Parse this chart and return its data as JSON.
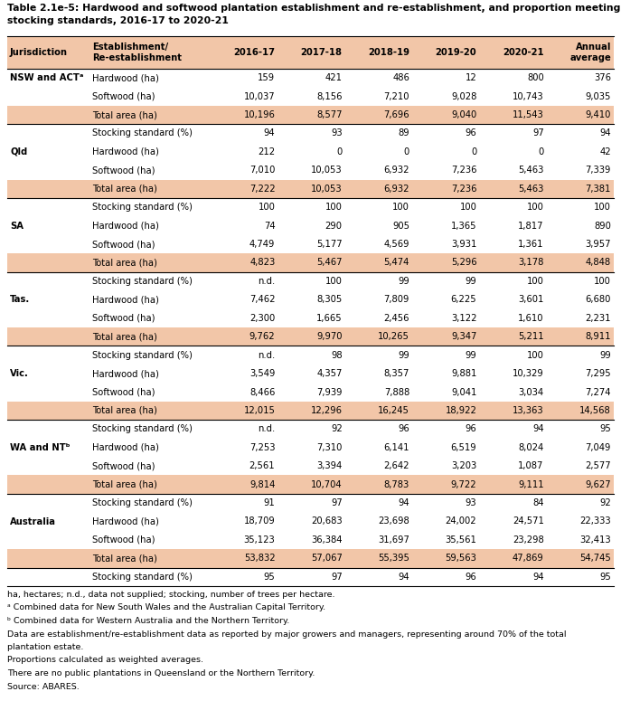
{
  "title_line1": "Table 2.1e-5: Hardwood and softwood plantation establishment and re-establishment, and proportion meeting",
  "title_line2": "stocking standards, 2016-17 to 2020-21",
  "col_headers": [
    "Jurisdiction",
    "Establishment/\nRe-establishment",
    "2016-17",
    "2017-18",
    "2018-19",
    "2019-20",
    "2020-21",
    "Annual\naverage"
  ],
  "rows": [
    {
      "jurisdiction": "NSW and ACTᵃ",
      "sub": "Hardwood (ha)",
      "values": [
        "159",
        "421",
        "486",
        "12",
        "800",
        "376"
      ],
      "highlight": false
    },
    {
      "jurisdiction": "",
      "sub": "Softwood (ha)",
      "values": [
        "10,037",
        "8,156",
        "7,210",
        "9,028",
        "10,743",
        "9,035"
      ],
      "highlight": false
    },
    {
      "jurisdiction": "",
      "sub": "Total area (ha)",
      "values": [
        "10,196",
        "8,577",
        "7,696",
        "9,040",
        "11,543",
        "9,410"
      ],
      "highlight": true
    },
    {
      "jurisdiction": "",
      "sub": "Stocking standard (%)",
      "values": [
        "94",
        "93",
        "89",
        "96",
        "97",
        "94"
      ],
      "highlight": false
    },
    {
      "jurisdiction": "Qld",
      "sub": "Hardwood (ha)",
      "values": [
        "212",
        "0",
        "0",
        "0",
        "0",
        "42"
      ],
      "highlight": false
    },
    {
      "jurisdiction": "",
      "sub": "Softwood (ha)",
      "values": [
        "7,010",
        "10,053",
        "6,932",
        "7,236",
        "5,463",
        "7,339"
      ],
      "highlight": false
    },
    {
      "jurisdiction": "",
      "sub": "Total area (ha)",
      "values": [
        "7,222",
        "10,053",
        "6,932",
        "7,236",
        "5,463",
        "7,381"
      ],
      "highlight": true
    },
    {
      "jurisdiction": "",
      "sub": "Stocking standard (%)",
      "values": [
        "100",
        "100",
        "100",
        "100",
        "100",
        "100"
      ],
      "highlight": false
    },
    {
      "jurisdiction": "SA",
      "sub": "Hardwood (ha)",
      "values": [
        "74",
        "290",
        "905",
        "1,365",
        "1,817",
        "890"
      ],
      "highlight": false
    },
    {
      "jurisdiction": "",
      "sub": "Softwood (ha)",
      "values": [
        "4,749",
        "5,177",
        "4,569",
        "3,931",
        "1,361",
        "3,957"
      ],
      "highlight": false
    },
    {
      "jurisdiction": "",
      "sub": "Total area (ha)",
      "values": [
        "4,823",
        "5,467",
        "5,474",
        "5,296",
        "3,178",
        "4,848"
      ],
      "highlight": true
    },
    {
      "jurisdiction": "",
      "sub": "Stocking standard (%)",
      "values": [
        "n.d.",
        "100",
        "99",
        "99",
        "100",
        "100"
      ],
      "highlight": false
    },
    {
      "jurisdiction": "Tas.",
      "sub": "Hardwood (ha)",
      "values": [
        "7,462",
        "8,305",
        "7,809",
        "6,225",
        "3,601",
        "6,680"
      ],
      "highlight": false
    },
    {
      "jurisdiction": "",
      "sub": "Softwood (ha)",
      "values": [
        "2,300",
        "1,665",
        "2,456",
        "3,122",
        "1,610",
        "2,231"
      ],
      "highlight": false
    },
    {
      "jurisdiction": "",
      "sub": "Total area (ha)",
      "values": [
        "9,762",
        "9,970",
        "10,265",
        "9,347",
        "5,211",
        "8,911"
      ],
      "highlight": true
    },
    {
      "jurisdiction": "",
      "sub": "Stocking standard (%)",
      "values": [
        "n.d.",
        "98",
        "99",
        "99",
        "100",
        "99"
      ],
      "highlight": false
    },
    {
      "jurisdiction": "Vic.",
      "sub": "Hardwood (ha)",
      "values": [
        "3,549",
        "4,357",
        "8,357",
        "9,881",
        "10,329",
        "7,295"
      ],
      "highlight": false
    },
    {
      "jurisdiction": "",
      "sub": "Softwood (ha)",
      "values": [
        "8,466",
        "7,939",
        "7,888",
        "9,041",
        "3,034",
        "7,274"
      ],
      "highlight": false
    },
    {
      "jurisdiction": "",
      "sub": "Total area (ha)",
      "values": [
        "12,015",
        "12,296",
        "16,245",
        "18,922",
        "13,363",
        "14,568"
      ],
      "highlight": true
    },
    {
      "jurisdiction": "",
      "sub": "Stocking standard (%)",
      "values": [
        "n.d.",
        "92",
        "96",
        "96",
        "94",
        "95"
      ],
      "highlight": false
    },
    {
      "jurisdiction": "WA and NTᵇ",
      "sub": "Hardwood (ha)",
      "values": [
        "7,253",
        "7,310",
        "6,141",
        "6,519",
        "8,024",
        "7,049"
      ],
      "highlight": false
    },
    {
      "jurisdiction": "",
      "sub": "Softwood (ha)",
      "values": [
        "2,561",
        "3,394",
        "2,642",
        "3,203",
        "1,087",
        "2,577"
      ],
      "highlight": false
    },
    {
      "jurisdiction": "",
      "sub": "Total area (ha)",
      "values": [
        "9,814",
        "10,704",
        "8,783",
        "9,722",
        "9,111",
        "9,627"
      ],
      "highlight": true
    },
    {
      "jurisdiction": "",
      "sub": "Stocking standard (%)",
      "values": [
        "91",
        "97",
        "94",
        "93",
        "84",
        "92"
      ],
      "highlight": false
    },
    {
      "jurisdiction": "Australia",
      "sub": "Hardwood (ha)",
      "values": [
        "18,709",
        "20,683",
        "23,698",
        "24,002",
        "24,571",
        "22,333"
      ],
      "highlight": false
    },
    {
      "jurisdiction": "",
      "sub": "Softwood (ha)",
      "values": [
        "35,123",
        "36,384",
        "31,697",
        "35,561",
        "23,298",
        "32,413"
      ],
      "highlight": false
    },
    {
      "jurisdiction": "",
      "sub": "Total area (ha)",
      "values": [
        "53,832",
        "57,067",
        "55,395",
        "59,563",
        "47,869",
        "54,745"
      ],
      "highlight": true
    },
    {
      "jurisdiction": "",
      "sub": "Stocking standard (%)",
      "values": [
        "95",
        "97",
        "94",
        "96",
        "94",
        "95"
      ],
      "highlight": false
    }
  ],
  "footnotes": [
    "ha, hectares; n.d., data not supplied; stocking, number of trees per hectare.",
    "ᵃ Combined data for New South Wales and the Australian Capital Territory.",
    "ᵇ Combined data for Western Australia and the Northern Territory.",
    "Data are establishment/re-establishment data as reported by major growers and managers, representing around 70% of the total",
    "plantation estate.",
    "Proportions calculated as weighted averages.",
    "There are no public plantations in Queensland or the Northern Territory.",
    "Source: ABARES."
  ],
  "header_bg": "#F2C6A8",
  "total_row_bg": "#F2C6A8",
  "border_color": "#000000",
  "text_color": "#000000"
}
